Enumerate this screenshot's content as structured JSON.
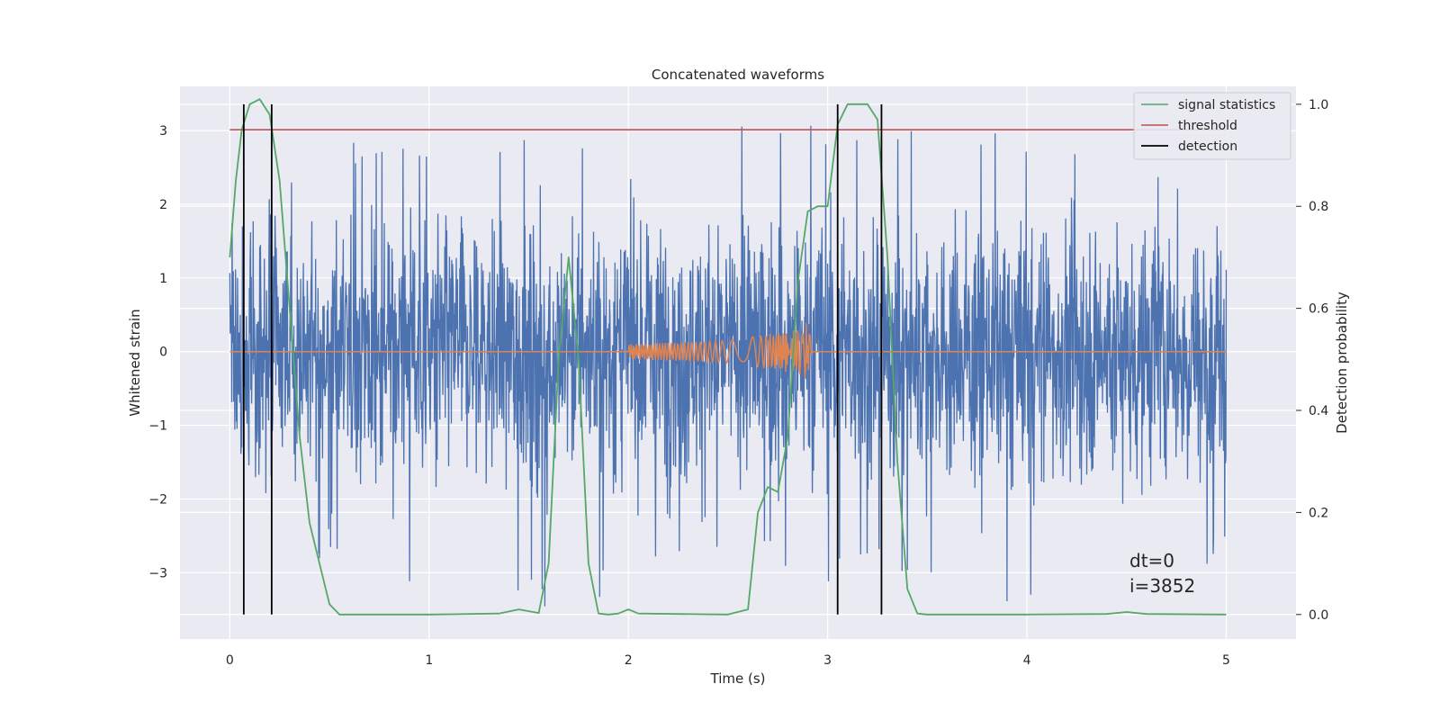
{
  "chart_data": {
    "type": "line",
    "title": "Concatenated waveforms",
    "xlabel": "Time (s)",
    "ylabel": "Whitened strain",
    "ylabel_right": "Detection probability",
    "xlim": [
      -0.25,
      5.35
    ],
    "ylim": [
      -3.9,
      3.6
    ],
    "ylim_right": [
      -0.048,
      1.035
    ],
    "xticks": [
      0,
      1,
      2,
      3,
      4,
      5
    ],
    "yticks": [
      -3,
      -2,
      -1,
      0,
      1,
      2,
      3
    ],
    "yticks_right": [
      0.0,
      0.2,
      0.4,
      0.6,
      0.8,
      1.0
    ],
    "ytick_labels": [
      "−3",
      "−2",
      "−1",
      "0",
      "1",
      "2",
      "3"
    ],
    "yticks_right_labels": [
      "0.0",
      "0.2",
      "0.4",
      "0.6",
      "0.8",
      "1.0"
    ],
    "grid": true,
    "legend_position": "top-right",
    "series": [
      {
        "name": "",
        "kind": "noise",
        "axis": "left",
        "color": "#4c72b0",
        "x_range": [
          0,
          5
        ],
        "envelope": {
          "x": [
            0,
            0.2,
            0.5,
            1.0,
            1.5,
            2.0,
            2.5,
            3.0,
            3.5,
            4.0,
            4.5,
            5.0
          ],
          "max": [
            2.2,
            3.0,
            3.0,
            2.9,
            3.2,
            2.9,
            3.1,
            3.25,
            3.0,
            3.1,
            3.0,
            1.9
          ],
          "min": [
            -2.4,
            -2.1,
            -3.0,
            -3.4,
            -3.6,
            -3.3,
            -2.7,
            -3.2,
            -3.0,
            -3.6,
            -3.4,
            -2.8
          ]
        }
      },
      {
        "name": "",
        "kind": "chirp",
        "axis": "left",
        "color": "#dd8452",
        "x": [
          0,
          2.0,
          2.5,
          2.85,
          2.9,
          2.92,
          5.0
        ],
        "amplitude": [
          0,
          0.1,
          0.15,
          0.3,
          0.45,
          0.0,
          0
        ]
      },
      {
        "name": "signal statistics",
        "axis": "right",
        "color": "#55a868",
        "x": [
          0,
          0.03,
          0.06,
          0.1,
          0.15,
          0.2,
          0.25,
          0.3,
          0.35,
          0.4,
          0.45,
          0.5,
          0.55,
          0.6,
          1.0,
          1.35,
          1.45,
          1.55,
          1.6,
          1.65,
          1.7,
          1.75,
          1.8,
          1.85,
          1.9,
          1.95,
          2.0,
          2.05,
          2.5,
          2.6,
          2.65,
          2.7,
          2.75,
          2.8,
          2.85,
          2.9,
          2.95,
          3.0,
          3.05,
          3.1,
          3.15,
          3.2,
          3.25,
          3.3,
          3.35,
          3.4,
          3.45,
          3.5,
          4.0,
          4.4,
          4.5,
          4.6,
          5.0
        ],
        "values": [
          0.7,
          0.85,
          0.95,
          1.0,
          1.01,
          0.98,
          0.85,
          0.6,
          0.35,
          0.18,
          0.1,
          0.02,
          0.0,
          0.0,
          0.0,
          0.002,
          0.01,
          0.003,
          0.1,
          0.5,
          0.7,
          0.5,
          0.1,
          0.002,
          0.0,
          0.002,
          0.01,
          0.002,
          0.0,
          0.01,
          0.2,
          0.25,
          0.24,
          0.35,
          0.65,
          0.79,
          0.8,
          0.8,
          0.96,
          1.0,
          1.0,
          1.0,
          0.97,
          0.7,
          0.3,
          0.05,
          0.002,
          0.0,
          0.0,
          0.001,
          0.005,
          0.001,
          0.0
        ]
      },
      {
        "name": "threshold",
        "axis": "right",
        "color": "#c44e52",
        "x": [
          0,
          5
        ],
        "values": [
          0.95,
          0.95
        ]
      },
      {
        "name": "detection",
        "kind": "vlines",
        "axis": "right",
        "color": "#000000",
        "x": [
          0.07,
          0.21,
          3.05,
          3.27
        ],
        "range": [
          0,
          1.0
        ]
      }
    ],
    "annotations": [
      "dt=0",
      "i=3852"
    ]
  }
}
